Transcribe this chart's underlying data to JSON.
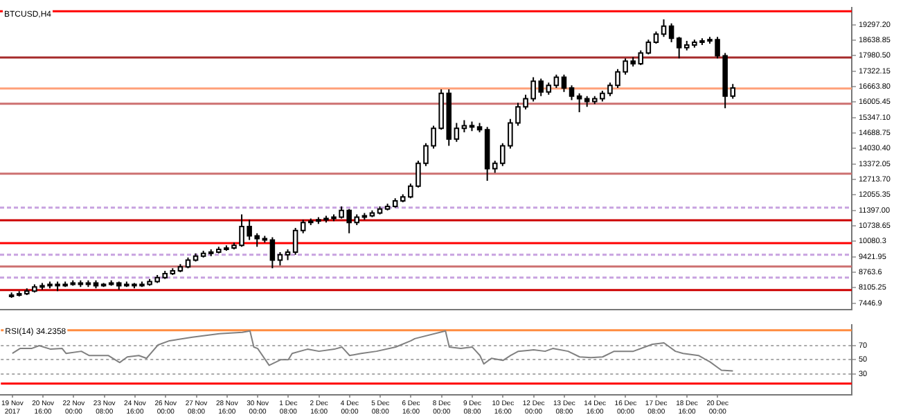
{
  "chart_data": [
    {
      "type": "candlestick",
      "title": "BTCUSD,H4",
      "tick_labels": "y",
      "x": [
        "2017-11-19T08:00",
        "2017-11-19T16:00",
        "2017-11-20T00:00",
        "2017-11-20T08:00",
        "2017-11-20T16:00",
        "2017-11-21T00:00",
        "2017-11-21T08:00",
        "2017-11-21T16:00",
        "2017-11-22T00:00",
        "2017-11-22T08:00",
        "2017-11-22T16:00",
        "2017-11-23T00:00",
        "2017-11-23T08:00",
        "2017-11-23T16:00",
        "2017-11-24T00:00",
        "2017-11-24T08:00",
        "2017-11-24T16:00",
        "2017-11-25T00:00",
        "2017-11-25T08:00",
        "2017-11-25T16:00",
        "2017-11-26T00:00",
        "2017-11-26T08:00",
        "2017-11-26T16:00",
        "2017-11-27T00:00",
        "2017-11-27T08:00",
        "2017-11-27T16:00",
        "2017-11-28T00:00",
        "2017-11-28T08:00",
        "2017-11-28T16:00",
        "2017-11-29T00:00",
        "2017-11-29T08:00",
        "2017-11-29T16:00",
        "2017-11-30T00:00",
        "2017-11-30T08:00",
        "2017-11-30T16:00",
        "2017-12-01T00:00",
        "2017-12-01T08:00",
        "2017-12-01T16:00",
        "2017-12-02T00:00",
        "2017-12-02T08:00",
        "2017-12-02T16:00",
        "2017-12-03T00:00",
        "2017-12-03T08:00",
        "2017-12-03T16:00",
        "2017-12-04T00:00",
        "2017-12-04T08:00",
        "2017-12-04T16:00",
        "2017-12-05T00:00",
        "2017-12-05T08:00",
        "2017-12-05T16:00",
        "2017-12-06T00:00",
        "2017-12-06T08:00",
        "2017-12-06T16:00",
        "2017-12-07T00:00",
        "2017-12-07T08:00",
        "2017-12-07T16:00",
        "2017-12-08T00:00",
        "2017-12-08T08:00",
        "2017-12-08T16:00",
        "2017-12-09T00:00",
        "2017-12-09T08:00",
        "2017-12-09T16:00",
        "2017-12-10T00:00",
        "2017-12-10T08:00",
        "2017-12-10T16:00",
        "2017-12-11T00:00",
        "2017-12-11T08:00",
        "2017-12-11T16:00",
        "2017-12-12T00:00",
        "2017-12-12T08:00",
        "2017-12-12T16:00",
        "2017-12-13T00:00",
        "2017-12-13T08:00",
        "2017-12-13T16:00",
        "2017-12-14T00:00",
        "2017-12-14T08:00",
        "2017-12-14T16:00",
        "2017-12-15T00:00",
        "2017-12-15T08:00",
        "2017-12-15T16:00",
        "2017-12-16T00:00",
        "2017-12-16T08:00",
        "2017-12-16T16:00",
        "2017-12-17T00:00",
        "2017-12-17T08:00",
        "2017-12-17T16:00",
        "2017-12-18T00:00",
        "2017-12-18T08:00",
        "2017-12-18T16:00",
        "2017-12-19T00:00",
        "2017-12-19T08:00",
        "2017-12-19T16:00",
        "2017-12-20T00:00",
        "2017-12-20T08:00",
        "2017-12-20T16:00"
      ],
      "ohlc": [
        [
          7733,
          7905,
          7676,
          7790
        ],
        [
          7790,
          7962,
          7733,
          7848
        ],
        [
          7848,
          8077,
          7790,
          7962
        ],
        [
          7962,
          8248,
          7905,
          8134
        ],
        [
          8134,
          8306,
          8019,
          8191
        ],
        [
          8191,
          8363,
          8077,
          8248
        ],
        [
          8248,
          8363,
          7962,
          8191
        ],
        [
          8191,
          8363,
          8134,
          8248
        ],
        [
          8248,
          8420,
          8191,
          8306
        ],
        [
          8306,
          8420,
          8134,
          8248
        ],
        [
          8248,
          8420,
          8134,
          8306
        ],
        [
          8306,
          8420,
          8077,
          8191
        ],
        [
          8191,
          8306,
          8134,
          8248
        ],
        [
          8248,
          8420,
          8191,
          8306
        ],
        [
          8306,
          8363,
          8019,
          8191
        ],
        [
          8191,
          8363,
          8134,
          8248
        ],
        [
          8248,
          8306,
          8077,
          8191
        ],
        [
          8191,
          8363,
          8134,
          8248
        ],
        [
          8248,
          8478,
          8191,
          8363
        ],
        [
          8363,
          8649,
          8306,
          8535
        ],
        [
          8535,
          8821,
          8478,
          8706
        ],
        [
          8706,
          8935,
          8649,
          8821
        ],
        [
          8821,
          9107,
          8764,
          8993
        ],
        [
          8993,
          9393,
          8935,
          9279
        ],
        [
          9279,
          9565,
          9222,
          9450
        ],
        [
          9450,
          9680,
          9393,
          9565
        ],
        [
          9565,
          9737,
          9450,
          9622
        ],
        [
          9622,
          9851,
          9565,
          9737
        ],
        [
          9737,
          9908,
          9680,
          9794
        ],
        [
          9794,
          10023,
          9737,
          9908
        ],
        [
          9908,
          11225,
          9851,
          10710
        ],
        [
          10710,
          10996,
          10137,
          10309
        ],
        [
          10309,
          10423,
          9851,
          10194
        ],
        [
          10194,
          10309,
          10023,
          10137
        ],
        [
          10137,
          10252,
          8935,
          9279
        ],
        [
          9279,
          9622,
          9050,
          9508
        ],
        [
          9508,
          9737,
          9279,
          9622
        ],
        [
          9622,
          10652,
          9508,
          10538
        ],
        [
          10538,
          10996,
          10423,
          10881
        ],
        [
          10881,
          11053,
          10767,
          10939
        ],
        [
          10939,
          11110,
          10824,
          10996
        ],
        [
          10996,
          11168,
          10881,
          11053
        ],
        [
          11053,
          11225,
          10939,
          11110
        ],
        [
          11110,
          11569,
          11053,
          11397
        ],
        [
          11397,
          11454,
          10423,
          10881
        ],
        [
          10881,
          11225,
          10767,
          11110
        ],
        [
          11110,
          11282,
          10996,
          11168
        ],
        [
          11168,
          11397,
          11110,
          11282
        ],
        [
          11282,
          11569,
          11225,
          11454
        ],
        [
          11454,
          11683,
          11397,
          11569
        ],
        [
          11569,
          11912,
          11511,
          11798
        ],
        [
          11798,
          12084,
          11740,
          11969
        ],
        [
          11969,
          12542,
          11912,
          12426
        ],
        [
          12426,
          13515,
          12370,
          13401
        ],
        [
          13401,
          14259,
          13286,
          14145
        ],
        [
          14145,
          15004,
          14030,
          14889
        ],
        [
          14889,
          16549,
          14832,
          16378
        ],
        [
          16378,
          16549,
          14145,
          14431
        ],
        [
          14431,
          15118,
          14316,
          14889
        ],
        [
          14889,
          15233,
          14718,
          15004
        ],
        [
          15004,
          15175,
          14774,
          14946
        ],
        [
          14946,
          15118,
          14718,
          14832
        ],
        [
          14832,
          14946,
          12656,
          13171
        ],
        [
          13171,
          13515,
          12999,
          13401
        ],
        [
          13401,
          14259,
          13286,
          14145
        ],
        [
          14145,
          15290,
          14030,
          15118
        ],
        [
          15118,
          15977,
          15004,
          15805
        ],
        [
          15805,
          16320,
          15691,
          16149
        ],
        [
          16149,
          17064,
          16034,
          16893
        ],
        [
          16893,
          17007,
          16263,
          16435
        ],
        [
          16435,
          16835,
          16320,
          16721
        ],
        [
          16721,
          17179,
          16606,
          17064
        ],
        [
          17064,
          17179,
          16435,
          16606
        ],
        [
          16606,
          16721,
          16091,
          16263
        ],
        [
          16263,
          16378,
          15576,
          16149
        ],
        [
          16149,
          16263,
          15805,
          16034
        ],
        [
          16034,
          16263,
          15920,
          16149
        ],
        [
          16149,
          16492,
          16034,
          16378
        ],
        [
          16378,
          16835,
          16263,
          16721
        ],
        [
          16721,
          17408,
          16606,
          17294
        ],
        [
          17294,
          17866,
          17179,
          17752
        ],
        [
          17752,
          17923,
          17522,
          17637
        ],
        [
          17637,
          18210,
          17580,
          18095
        ],
        [
          18095,
          18668,
          18038,
          18553
        ],
        [
          18553,
          19011,
          18496,
          18897
        ],
        [
          18897,
          19526,
          18782,
          19240
        ],
        [
          19240,
          19354,
          18553,
          18725
        ],
        [
          18725,
          18782,
          17866,
          18324
        ],
        [
          18324,
          18610,
          18210,
          18439
        ],
        [
          18439,
          18668,
          18324,
          18553
        ],
        [
          18553,
          18725,
          18439,
          18610
        ],
        [
          18610,
          18782,
          18496,
          18668
        ],
        [
          18668,
          18782,
          17866,
          17981
        ],
        [
          17981,
          18095,
          15748,
          16263
        ],
        [
          16263,
          16778,
          16149,
          16606
        ]
      ],
      "xlim": [
        "2017-11-18T20:00",
        "2017-12-25T20:00"
      ],
      "ylim": [
        7160,
        20040
      ],
      "yticks": [
        7446.9,
        8105.25,
        8763.6,
        9421.95,
        10080.3,
        10738.65,
        {
          "value": 11397,
          "label": "11397.00"
        },
        12055.35,
        {
          "value": 12713.7,
          "label": "12713.70"
        },
        13372.05,
        {
          "value": 14030.4,
          "label": "14030.40"
        },
        14688.75,
        {
          "value": 15347.1,
          "label": "15347.10"
        },
        16005.45,
        {
          "value": 16663.8,
          "label": "16663.80"
        },
        17322.15,
        {
          "value": 17980.5,
          "label": "17980.50"
        },
        18638.85,
        {
          "value": 19297.2,
          "label": "19297.20"
        }
      ],
      "ref_lines": [
        {
          "axis": "y",
          "value": 19870,
          "color": "#ff0000"
        },
        {
          "axis": "y",
          "value": 17906,
          "color": "#a52a2a"
        },
        {
          "axis": "y",
          "value": 16589,
          "color": "#ffa07a"
        },
        {
          "axis": "y",
          "value": 15937,
          "color": "#cd7070"
        },
        {
          "axis": "y",
          "value": 12960,
          "color": "#cd7070"
        },
        {
          "axis": "y",
          "value": 11511,
          "color": "#c8a2e0",
          "line_style": "dashed"
        },
        {
          "axis": "y",
          "value": 10979,
          "color": "#cc0000"
        },
        {
          "axis": "y",
          "value": 10006,
          "color": "#ff0000"
        },
        {
          "axis": "y",
          "value": 9508,
          "color": "#c8a2e0",
          "line_style": "dashed"
        },
        {
          "axis": "y",
          "value": 9009,
          "color": "#cd7070"
        },
        {
          "axis": "y",
          "value": 8534,
          "color": "#c8a2e0",
          "line_style": "dashed"
        },
        {
          "axis": "y",
          "value": 8002,
          "color": "#cc0000"
        }
      ]
    },
    {
      "type": "line",
      "title": "RSI(14) 34.2358",
      "x": [
        "2017-11-19T08:00",
        "2017-11-19T16:00",
        "2017-11-20T04:00",
        "2017-11-20T12:00",
        "2017-11-21T00:00",
        "2017-11-21T12:00",
        "2017-11-21T16:00",
        "2017-11-22T08:00",
        "2017-11-22T16:00",
        "2017-11-23T12:00",
        "2017-11-24T00:00",
        "2017-11-24T08:00",
        "2017-11-24T20:00",
        "2017-11-25T04:00",
        "2017-11-25T16:00",
        "2017-11-26T04:00",
        "2017-11-27T04:00",
        "2017-11-28T08:00",
        "2017-11-29T08:00",
        "2017-11-29T16:00",
        "2017-11-29T20:00",
        "2017-11-30T00:00",
        "2017-11-30T12:00",
        "2017-12-01T00:00",
        "2017-12-01T08:00",
        "2017-12-01T12:00",
        "2017-12-02T04:00",
        "2017-12-02T16:00",
        "2017-12-03T08:00",
        "2017-12-03T16:00",
        "2017-12-04T00:00",
        "2017-12-04T12:00",
        "2017-12-05T04:00",
        "2017-12-06T00:00",
        "2017-12-06T16:00",
        "2017-12-06T20:00",
        "2017-12-08T04:00",
        "2017-12-08T08:00",
        "2017-12-08T20:00",
        "2017-12-09T08:00",
        "2017-12-09T16:00",
        "2017-12-09T20:00",
        "2017-12-10T04:00",
        "2017-12-10T16:00",
        "2017-12-11T00:00",
        "2017-12-11T08:00",
        "2017-12-12T00:00",
        "2017-12-12T12:00",
        "2017-12-12T20:00",
        "2017-12-13T12:00",
        "2017-12-14T00:00",
        "2017-12-14T12:00",
        "2017-12-15T00:00",
        "2017-12-15T12:00",
        "2017-12-16T08:00",
        "2017-12-17T04:00",
        "2017-12-17T16:00",
        "2017-12-18T04:00",
        "2017-12-18T12:00",
        "2017-12-19T04:00",
        "2017-12-19T16:00",
        "2017-12-20T04:00",
        "2017-12-20T16:00"
      ],
      "series": [
        {
          "color": "#808080",
          "values": [
            59,
            66,
            66,
            70,
            65,
            66,
            59,
            62,
            56,
            56,
            46,
            54,
            56,
            52,
            71,
            77,
            82,
            87,
            89,
            91,
            68,
            66,
            42,
            50,
            50,
            59,
            65,
            62,
            65,
            68,
            56,
            59,
            62,
            68,
            77,
            80,
            91,
            68,
            66,
            68,
            56,
            44,
            52,
            49,
            56,
            62,
            64,
            62,
            66,
            62,
            54,
            53,
            54,
            62,
            62,
            72,
            74,
            62,
            59,
            56,
            47,
            35,
            34
          ]
        }
      ],
      "xlim": [
        "2017-11-18T20:00",
        "2017-12-25T20:00"
      ],
      "xticks": [
        {
          "value": "2017-11-19T08:00",
          "label": "19 Nov 2017"
        },
        {
          "value": "2017-11-20T16:00",
          "label": "20 Nov 16:00"
        },
        {
          "value": "2017-11-22T00:00",
          "label": "22 Nov 00:00"
        },
        {
          "value": "2017-11-23T08:00",
          "label": "23 Nov 08:00"
        },
        {
          "value": "2017-11-24T16:00",
          "label": "24 Nov 16:00"
        },
        {
          "value": "2017-11-26T00:00",
          "label": "26 Nov 00:00"
        },
        {
          "value": "2017-11-27T08:00",
          "label": "27 Nov 08:00"
        },
        {
          "value": "2017-11-28T16:00",
          "label": "28 Nov 16:00"
        },
        {
          "value": "2017-11-30T00:00",
          "label": "30 Nov 00:00"
        },
        {
          "value": "2017-12-01T08:00",
          "label": "1 Dec 08:00"
        },
        {
          "value": "2017-12-02T16:00",
          "label": "2 Dec 16:00"
        },
        {
          "value": "2017-12-04T00:00",
          "label": "4 Dec 00:00"
        },
        {
          "value": "2017-12-05T08:00",
          "label": "5 Dec 08:00"
        },
        {
          "value": "2017-12-06T16:00",
          "label": "6 Dec 16:00"
        },
        {
          "value": "2017-12-08T00:00",
          "label": "8 Dec 00:00"
        },
        {
          "value": "2017-12-09T08:00",
          "label": "9 Dec 08:00"
        },
        {
          "value": "2017-12-10T16:00",
          "label": "10 Dec 16:00"
        },
        {
          "value": "2017-12-12T00:00",
          "label": "12 Dec 00:00"
        },
        {
          "value": "2017-12-13T08:00",
          "label": "13 Dec 08:00"
        },
        {
          "value": "2017-12-14T16:00",
          "label": "14 Dec 16:00"
        },
        {
          "value": "2017-12-16T00:00",
          "label": "16 Dec 00:00"
        },
        {
          "value": "2017-12-17T08:00",
          "label": "17 Dec 08:00"
        },
        {
          "value": "2017-12-18T16:00",
          "label": "18 Dec 16:00"
        },
        {
          "value": "2017-12-20T00:00",
          "label": "20 Dec 00:00"
        }
      ],
      "ylim": [
        0,
        100
      ],
      "yticks": [
        30,
        50,
        70
      ],
      "grid": "y",
      "ref_lines": [
        {
          "axis": "y",
          "value": 92,
          "color": "#ff8c40"
        },
        {
          "axis": "y",
          "value": 16,
          "color": "#ff0000"
        }
      ]
    }
  ]
}
